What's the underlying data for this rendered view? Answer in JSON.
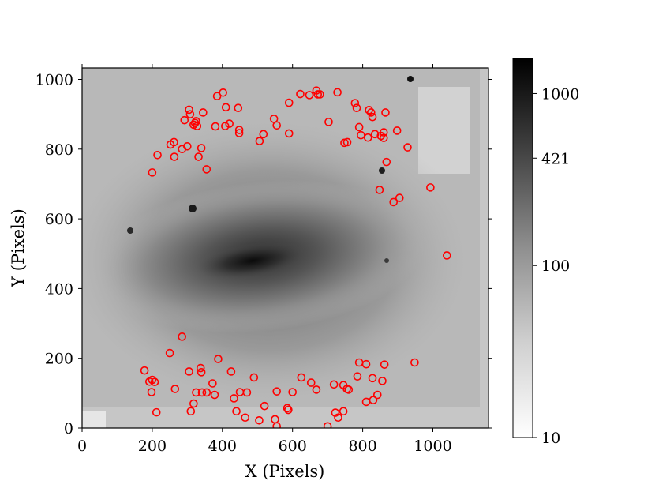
{
  "chart_data": {
    "type": "scatter",
    "title": "",
    "xlabel": "X (Pixels)",
    "ylabel": "Y (Pixels)",
    "xlim": [
      0,
      1160
    ],
    "ylim": [
      0,
      1030
    ],
    "x_ticks": [
      0,
      200,
      400,
      600,
      800,
      1000
    ],
    "y_ticks": [
      0,
      200,
      400,
      600,
      800,
      1000
    ],
    "x_tick_labels": [
      "0",
      "200",
      "400",
      "600",
      "800",
      "1000"
    ],
    "y_tick_labels": [
      "0",
      "200",
      "400",
      "600",
      "800",
      "1000"
    ],
    "background": "grayscale galaxy image (inverted log stretch)",
    "marker": "open circle",
    "marker_color": "#ff0000",
    "grid": false,
    "colorbar": {
      "scale": "log",
      "range": [
        10,
        1600
      ],
      "colormap": "gray_r",
      "ticks": [
        10,
        100,
        421,
        1000
      ],
      "tick_labels": [
        "10",
        "100",
        "421",
        "1000"
      ]
    },
    "points": [
      [
        200,
        733
      ],
      [
        215,
        783
      ],
      [
        252,
        813
      ],
      [
        262,
        820
      ],
      [
        263,
        778
      ],
      [
        285,
        800
      ],
      [
        300,
        808
      ],
      [
        292,
        883
      ],
      [
        305,
        913
      ],
      [
        308,
        900
      ],
      [
        318,
        870
      ],
      [
        322,
        875
      ],
      [
        325,
        880
      ],
      [
        328,
        866
      ],
      [
        340,
        803
      ],
      [
        332,
        778
      ],
      [
        345,
        905
      ],
      [
        355,
        742
      ],
      [
        380,
        865
      ],
      [
        385,
        952
      ],
      [
        402,
        962
      ],
      [
        410,
        920
      ],
      [
        408,
        866
      ],
      [
        420,
        873
      ],
      [
        445,
        918
      ],
      [
        448,
        855
      ],
      [
        448,
        846
      ],
      [
        506,
        823
      ],
      [
        517,
        843
      ],
      [
        547,
        887
      ],
      [
        555,
        868
      ],
      [
        590,
        845
      ],
      [
        590,
        933
      ],
      [
        622,
        958
      ],
      [
        648,
        955
      ],
      [
        668,
        968
      ],
      [
        672,
        957
      ],
      [
        678,
        957
      ],
      [
        703,
        878
      ],
      [
        728,
        963
      ],
      [
        748,
        818
      ],
      [
        756,
        820
      ],
      [
        778,
        932
      ],
      [
        783,
        918
      ],
      [
        790,
        863
      ],
      [
        795,
        840
      ],
      [
        815,
        833
      ],
      [
        818,
        912
      ],
      [
        824,
        905
      ],
      [
        828,
        892
      ],
      [
        835,
        843
      ],
      [
        852,
        838
      ],
      [
        860,
        848
      ],
      [
        860,
        832
      ],
      [
        865,
        905
      ],
      [
        868,
        763
      ],
      [
        848,
        683
      ],
      [
        888,
        648
      ],
      [
        905,
        660
      ],
      [
        898,
        853
      ],
      [
        928,
        805
      ],
      [
        993,
        690
      ],
      [
        1040,
        495
      ],
      [
        178,
        165
      ],
      [
        192,
        133
      ],
      [
        200,
        138
      ],
      [
        198,
        103
      ],
      [
        212,
        45
      ],
      [
        207,
        132
      ],
      [
        250,
        215
      ],
      [
        265,
        112
      ],
      [
        285,
        262
      ],
      [
        305,
        162
      ],
      [
        310,
        48
      ],
      [
        318,
        70
      ],
      [
        325,
        102
      ],
      [
        338,
        172
      ],
      [
        340,
        160
      ],
      [
        342,
        102
      ],
      [
        355,
        102
      ],
      [
        372,
        128
      ],
      [
        378,
        95
      ],
      [
        388,
        198
      ],
      [
        425,
        162
      ],
      [
        433,
        85
      ],
      [
        440,
        48
      ],
      [
        450,
        103
      ],
      [
        465,
        30
      ],
      [
        470,
        102
      ],
      [
        490,
        145
      ],
      [
        505,
        22
      ],
      [
        520,
        63
      ],
      [
        550,
        25
      ],
      [
        555,
        105
      ],
      [
        555,
        5
      ],
      [
        588,
        52
      ],
      [
        585,
        57
      ],
      [
        600,
        103
      ],
      [
        625,
        145
      ],
      [
        653,
        130
      ],
      [
        668,
        110
      ],
      [
        700,
        5
      ],
      [
        718,
        125
      ],
      [
        722,
        44
      ],
      [
        730,
        30
      ],
      [
        745,
        123
      ],
      [
        745,
        48
      ],
      [
        755,
        112
      ],
      [
        760,
        110
      ],
      [
        785,
        148
      ],
      [
        790,
        188
      ],
      [
        810,
        183
      ],
      [
        810,
        75
      ],
      [
        828,
        143
      ],
      [
        830,
        80
      ],
      [
        842,
        95
      ],
      [
        856,
        135
      ],
      [
        862,
        182
      ],
      [
        948,
        188
      ]
    ]
  }
}
